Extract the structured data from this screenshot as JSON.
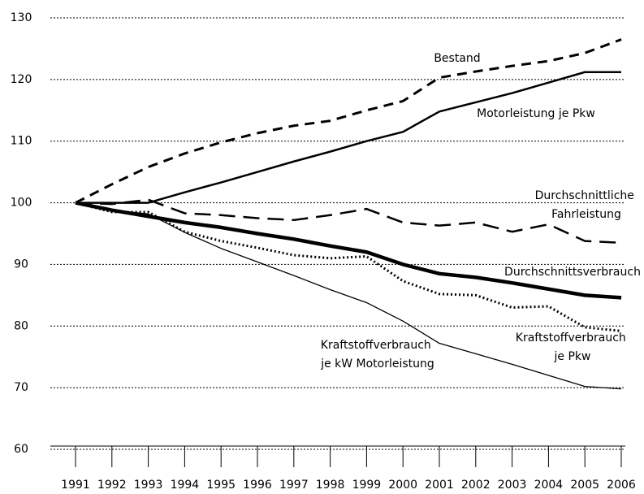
{
  "chart_data": {
    "type": "line",
    "categories": [
      "1991",
      "1992",
      "1993",
      "1994",
      "1995",
      "1996",
      "1997",
      "1998",
      "1999",
      "2000",
      "2001",
      "2002",
      "2003",
      "2004",
      "2005",
      "2006"
    ],
    "series": [
      {
        "name": "Bestand",
        "color": "#000000",
        "values": [
          100,
          103,
          105.8,
          108,
          109.8,
          111.3,
          112.5,
          113.3,
          115,
          116.5,
          120.3,
          121.3,
          122.2,
          123,
          124.3,
          126.5
        ]
      },
      {
        "name": "Motorleistung je Pkw",
        "color": "#000000",
        "values": [
          100,
          100,
          100,
          101.7,
          103.3,
          105,
          106.7,
          108.3,
          110,
          111.5,
          114.8,
          116.3,
          117.8,
          119.5,
          121.2,
          121.2
        ]
      },
      {
        "name": "Durchschnittliche Fahrleistung",
        "color": "#000000",
        "values": [
          100,
          99.8,
          100.5,
          98.3,
          98,
          97.5,
          97.2,
          98,
          99,
          96.8,
          96.3,
          96.8,
          95.3,
          96.5,
          93.8,
          93.5
        ]
      },
      {
        "name": "Durchschnittsverbrauch",
        "color": "#000000",
        "values": [
          100,
          98.8,
          97.8,
          96.8,
          96,
          95,
          94.1,
          93,
          92,
          90,
          88.5,
          87.9,
          87,
          86,
          85,
          84.6
        ]
      },
      {
        "name": "Kraftstoffverbrauch je Pkw",
        "color": "#000000",
        "values": [
          100,
          98.5,
          98.5,
          95.3,
          93.8,
          92.7,
          91.5,
          91,
          91.3,
          87.3,
          85.2,
          85,
          83,
          83.2,
          79.8,
          79.2
        ]
      },
      {
        "name": "Kraftstoffverbrauch je kW Motorleistung",
        "color": "#000000",
        "values": [
          100,
          98.8,
          98.2,
          95.2,
          92.6,
          90.4,
          88.2,
          85.9,
          83.8,
          80.8,
          77.2,
          75.5,
          73.8,
          72,
          70.2,
          69.8
        ]
      }
    ],
    "ylim": [
      60,
      130
    ],
    "yticks": [
      60,
      70,
      80,
      90,
      100,
      110,
      120,
      130
    ],
    "grid": true
  }
}
